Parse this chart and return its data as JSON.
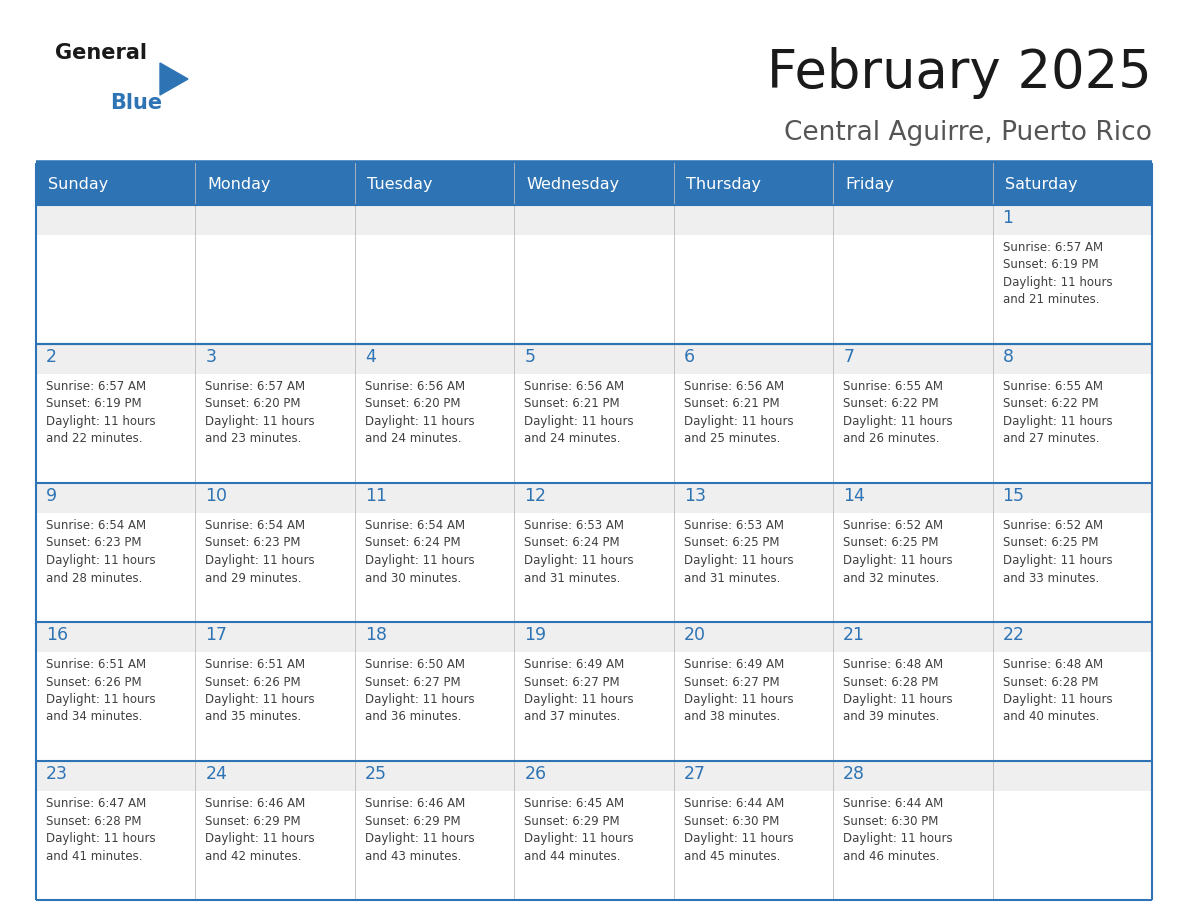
{
  "title": "February 2025",
  "subtitle": "Central Aguirre, Puerto Rico",
  "days_of_week": [
    "Sunday",
    "Monday",
    "Tuesday",
    "Wednesday",
    "Thursday",
    "Friday",
    "Saturday"
  ],
  "header_bg": "#2E74B5",
  "header_text": "#FFFFFF",
  "cell_bg_white": "#FFFFFF",
  "cell_bg_gray": "#EFEFEF",
  "divider_color": "#2E74B5",
  "day_num_color": "#2E74B5",
  "cell_text_color": "#404040",
  "title_color": "#1A1A1A",
  "subtitle_color": "#555555",
  "logo_general_color": "#1A1A1A",
  "logo_blue_color": "#2E74B5",
  "weeks": [
    {
      "days": [
        {
          "day": null,
          "sunrise": null,
          "sunset": null,
          "daylight": null
        },
        {
          "day": null,
          "sunrise": null,
          "sunset": null,
          "daylight": null
        },
        {
          "day": null,
          "sunrise": null,
          "sunset": null,
          "daylight": null
        },
        {
          "day": null,
          "sunrise": null,
          "sunset": null,
          "daylight": null
        },
        {
          "day": null,
          "sunrise": null,
          "sunset": null,
          "daylight": null
        },
        {
          "day": null,
          "sunrise": null,
          "sunset": null,
          "daylight": null
        },
        {
          "day": 1,
          "sunrise": "6:57 AM",
          "sunset": "6:19 PM",
          "daylight": "11 hours and 21 minutes."
        }
      ]
    },
    {
      "days": [
        {
          "day": 2,
          "sunrise": "6:57 AM",
          "sunset": "6:19 PM",
          "daylight": "11 hours and 22 minutes."
        },
        {
          "day": 3,
          "sunrise": "6:57 AM",
          "sunset": "6:20 PM",
          "daylight": "11 hours and 23 minutes."
        },
        {
          "day": 4,
          "sunrise": "6:56 AM",
          "sunset": "6:20 PM",
          "daylight": "11 hours and 24 minutes."
        },
        {
          "day": 5,
          "sunrise": "6:56 AM",
          "sunset": "6:21 PM",
          "daylight": "11 hours and 24 minutes."
        },
        {
          "day": 6,
          "sunrise": "6:56 AM",
          "sunset": "6:21 PM",
          "daylight": "11 hours and 25 minutes."
        },
        {
          "day": 7,
          "sunrise": "6:55 AM",
          "sunset": "6:22 PM",
          "daylight": "11 hours and 26 minutes."
        },
        {
          "day": 8,
          "sunrise": "6:55 AM",
          "sunset": "6:22 PM",
          "daylight": "11 hours and 27 minutes."
        }
      ]
    },
    {
      "days": [
        {
          "day": 9,
          "sunrise": "6:54 AM",
          "sunset": "6:23 PM",
          "daylight": "11 hours and 28 minutes."
        },
        {
          "day": 10,
          "sunrise": "6:54 AM",
          "sunset": "6:23 PM",
          "daylight": "11 hours and 29 minutes."
        },
        {
          "day": 11,
          "sunrise": "6:54 AM",
          "sunset": "6:24 PM",
          "daylight": "11 hours and 30 minutes."
        },
        {
          "day": 12,
          "sunrise": "6:53 AM",
          "sunset": "6:24 PM",
          "daylight": "11 hours and 31 minutes."
        },
        {
          "day": 13,
          "sunrise": "6:53 AM",
          "sunset": "6:25 PM",
          "daylight": "11 hours and 31 minutes."
        },
        {
          "day": 14,
          "sunrise": "6:52 AM",
          "sunset": "6:25 PM",
          "daylight": "11 hours and 32 minutes."
        },
        {
          "day": 15,
          "sunrise": "6:52 AM",
          "sunset": "6:25 PM",
          "daylight": "11 hours and 33 minutes."
        }
      ]
    },
    {
      "days": [
        {
          "day": 16,
          "sunrise": "6:51 AM",
          "sunset": "6:26 PM",
          "daylight": "11 hours and 34 minutes."
        },
        {
          "day": 17,
          "sunrise": "6:51 AM",
          "sunset": "6:26 PM",
          "daylight": "11 hours and 35 minutes."
        },
        {
          "day": 18,
          "sunrise": "6:50 AM",
          "sunset": "6:27 PM",
          "daylight": "11 hours and 36 minutes."
        },
        {
          "day": 19,
          "sunrise": "6:49 AM",
          "sunset": "6:27 PM",
          "daylight": "11 hours and 37 minutes."
        },
        {
          "day": 20,
          "sunrise": "6:49 AM",
          "sunset": "6:27 PM",
          "daylight": "11 hours and 38 minutes."
        },
        {
          "day": 21,
          "sunrise": "6:48 AM",
          "sunset": "6:28 PM",
          "daylight": "11 hours and 39 minutes."
        },
        {
          "day": 22,
          "sunrise": "6:48 AM",
          "sunset": "6:28 PM",
          "daylight": "11 hours and 40 minutes."
        }
      ]
    },
    {
      "days": [
        {
          "day": 23,
          "sunrise": "6:47 AM",
          "sunset": "6:28 PM",
          "daylight": "11 hours and 41 minutes."
        },
        {
          "day": 24,
          "sunrise": "6:46 AM",
          "sunset": "6:29 PM",
          "daylight": "11 hours and 42 minutes."
        },
        {
          "day": 25,
          "sunrise": "6:46 AM",
          "sunset": "6:29 PM",
          "daylight": "11 hours and 43 minutes."
        },
        {
          "day": 26,
          "sunrise": "6:45 AM",
          "sunset": "6:29 PM",
          "daylight": "11 hours and 44 minutes."
        },
        {
          "day": 27,
          "sunrise": "6:44 AM",
          "sunset": "6:30 PM",
          "daylight": "11 hours and 45 minutes."
        },
        {
          "day": 28,
          "sunrise": "6:44 AM",
          "sunset": "6:30 PM",
          "daylight": "11 hours and 46 minutes."
        },
        {
          "day": null,
          "sunrise": null,
          "sunset": null,
          "daylight": null
        }
      ]
    }
  ]
}
